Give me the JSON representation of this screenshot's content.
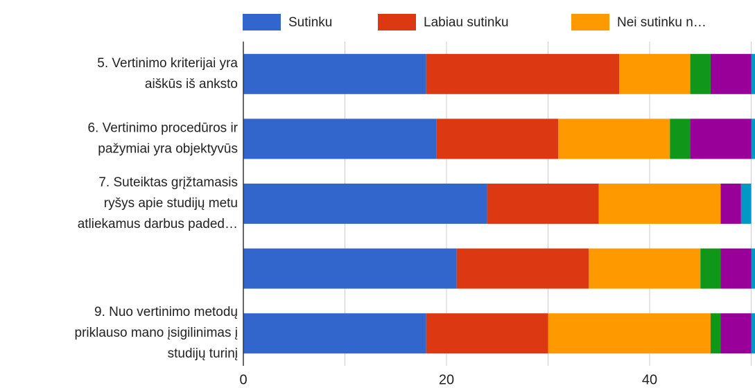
{
  "chart_data": {
    "type": "stacked-barh",
    "categories": [
      [
        "5. Vertinimo kriterijai yra",
        "aiškūs iš anksto"
      ],
      [
        "6. Vertinimo procedūros ir",
        "pažymiai yra objektyvūs"
      ],
      [
        "7. Suteiktas grįžtamasis",
        "ryšys apie studijų metu",
        "atliekamus darbus paded…"
      ],
      null,
      [
        "9. Nuo vertinimo metodų",
        "priklauso mano įsigilinimas į",
        "studijų turinį"
      ]
    ],
    "series": [
      {
        "name": "Sutinku",
        "color": "#3366cc",
        "values": [
          18,
          19,
          24,
          21,
          18
        ]
      },
      {
        "name": "Labiau sutinku",
        "color": "#dc3912",
        "values": [
          19,
          12,
          11,
          13,
          12
        ]
      },
      {
        "name": "Nei sutinku n…",
        "color": "#ff9900",
        "values": [
          7,
          11,
          12,
          11,
          16
        ]
      },
      {
        "color": "#109618",
        "values": [
          2,
          2,
          0,
          2,
          1
        ]
      },
      {
        "color": "#990099",
        "values": [
          4,
          6,
          2,
          3,
          3
        ]
      },
      {
        "color": "#0099c6",
        "values": [
          1,
          1,
          1,
          1,
          1
        ]
      }
    ],
    "xlim": [
      0,
      50.3
    ],
    "xticks": [
      0,
      20,
      40
    ],
    "minor_xticks": [
      10,
      30,
      50
    ],
    "grid": true,
    "legend": "top"
  }
}
